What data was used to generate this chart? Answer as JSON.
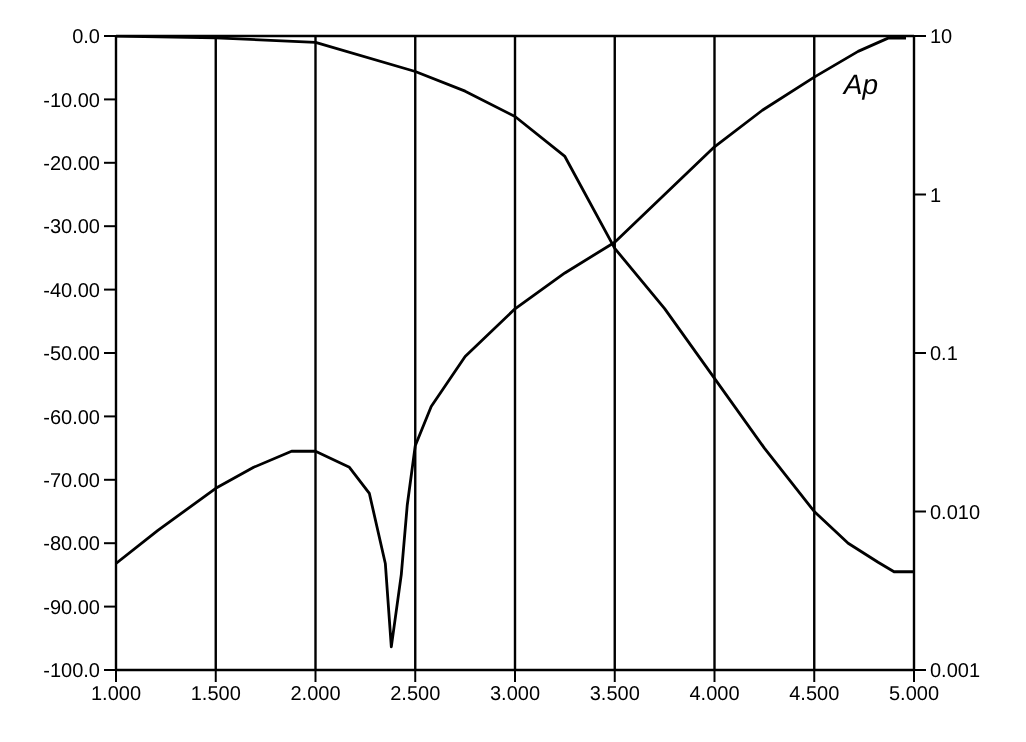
{
  "chart_data": {
    "type": "line",
    "grid": true,
    "marker": "none",
    "line_style": "solid",
    "log": "y2",
    "xlim": [
      1,
      5
    ],
    "xticks": [
      {
        "value": 1,
        "label": "1.000"
      },
      {
        "value": 1.5,
        "label": "1.500"
      },
      {
        "value": 2,
        "label": "2.000"
      },
      {
        "value": 2.5,
        "label": "2.500"
      },
      {
        "value": 3,
        "label": "3.000"
      },
      {
        "value": 3.5,
        "label": "3.500"
      },
      {
        "value": 4,
        "label": "4.000"
      },
      {
        "value": 4.5,
        "label": "4.500"
      },
      {
        "value": 5,
        "label": "5.000"
      }
    ],
    "ylim": [
      -100,
      0
    ],
    "yticks": [
      {
        "value": 0,
        "label": "0.0"
      },
      {
        "value": -10,
        "label": "-10.00"
      },
      {
        "value": -20,
        "label": "-20.00"
      },
      {
        "value": -30,
        "label": "-30.00"
      },
      {
        "value": -40,
        "label": "-40.00"
      },
      {
        "value": -50,
        "label": "-50.00"
      },
      {
        "value": -60,
        "label": "-60.00"
      },
      {
        "value": -70,
        "label": "-70.00"
      },
      {
        "value": -80,
        "label": "-80.00"
      },
      {
        "value": -90,
        "label": "-90.00"
      },
      {
        "value": -100,
        "label": "-100.0"
      }
    ],
    "y2lim": [
      0.001,
      10
    ],
    "y2ticks": [
      10,
      1,
      0.1,
      {
        "value": 0.01,
        "label": "0.010"
      },
      0.001
    ],
    "annotations": [
      "Ap"
    ],
    "series": [
      {
        "color": "#000000",
        "x": [
          1,
          1.5,
          2,
          2.5,
          2.75,
          3,
          3.25,
          3.5,
          3.75,
          4,
          4.25,
          4.5,
          4.67,
          4.82,
          4.9,
          5
        ],
        "values": [
          0,
          -0.3,
          -1,
          -5.6,
          -8.7,
          -12.7,
          -19,
          -33.5,
          -43,
          -54,
          -65,
          -75,
          -80,
          -83,
          -84.5,
          -84.5
        ]
      },
      {
        "color": "#000000",
        "axis": "y2",
        "x": [
          1,
          1.21,
          1.5,
          1.69,
          1.88,
          2,
          2.17,
          2.27,
          2.35,
          2.38,
          2.43,
          2.46,
          2.5,
          2.58,
          2.75,
          3,
          3.25,
          3.5,
          3.75,
          4,
          4.24,
          4.5,
          4.72,
          4.87,
          4.96
        ],
        "values": [
          0.0047,
          0.0076,
          0.014,
          0.019,
          0.024,
          0.024,
          0.019,
          0.013,
          0.0047,
          0.0014,
          0.004,
          0.011,
          0.026,
          0.046,
          0.095,
          0.19,
          0.32,
          0.5,
          1,
          2,
          3.4,
          5.5,
          8,
          9.7,
          9.7
        ]
      }
    ]
  }
}
